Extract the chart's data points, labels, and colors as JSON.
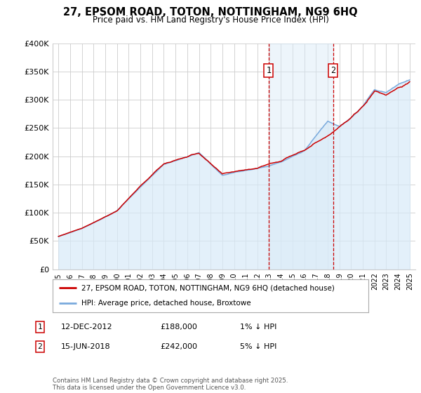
{
  "title": "27, EPSOM ROAD, TOTON, NOTTINGHAM, NG9 6HQ",
  "subtitle": "Price paid vs. HM Land Registry's House Price Index (HPI)",
  "ylim": [
    0,
    400000
  ],
  "yticks": [
    0,
    50000,
    100000,
    150000,
    200000,
    250000,
    300000,
    350000,
    400000
  ],
  "ytick_labels": [
    "£0",
    "£50K",
    "£100K",
    "£150K",
    "£200K",
    "£250K",
    "£300K",
    "£350K",
    "£400K"
  ],
  "xlim_start": 1994.5,
  "xlim_end": 2025.5,
  "xticks": [
    1995,
    1996,
    1997,
    1998,
    1999,
    2000,
    2001,
    2002,
    2003,
    2004,
    2005,
    2006,
    2007,
    2008,
    2009,
    2010,
    2011,
    2012,
    2013,
    2014,
    2015,
    2016,
    2017,
    2018,
    2019,
    2020,
    2021,
    2022,
    2023,
    2024,
    2025
  ],
  "event1_x": 2012.95,
  "event1_label": "1",
  "event1_date": "12-DEC-2012",
  "event1_price": "£188,000",
  "event1_hpi": "1% ↓ HPI",
  "event2_x": 2018.46,
  "event2_label": "2",
  "event2_date": "15-JUN-2018",
  "event2_price": "£242,000",
  "event2_hpi": "5% ↓ HPI",
  "red_line_color": "#cc0000",
  "blue_line_color": "#7aaadd",
  "blue_fill_color": "#d8eaf8",
  "vline_color": "#cc0000",
  "grid_color": "#cccccc",
  "bg_color": "#ffffff",
  "footnote": "Contains HM Land Registry data © Crown copyright and database right 2025.\nThis data is licensed under the Open Government Licence v3.0.",
  "legend_label1": "27, EPSOM ROAD, TOTON, NOTTINGHAM, NG9 6HQ (detached house)",
  "legend_label2": "HPI: Average price, detached house, Broxtowe",
  "hpi_keypoints_x": [
    1995,
    1997,
    2000,
    2002,
    2004,
    2007,
    2009,
    2010,
    2012,
    2013,
    2014,
    2016,
    2018,
    2019,
    2020,
    2021,
    2022,
    2023,
    2024,
    2025
  ],
  "hpi_keypoints_y": [
    58000,
    72000,
    103000,
    145000,
    185000,
    205000,
    165000,
    170000,
    178000,
    182000,
    190000,
    210000,
    262000,
    255000,
    270000,
    290000,
    320000,
    315000,
    330000,
    340000
  ],
  "prop_keypoints_x": [
    1995,
    1997,
    2000,
    2002,
    2004,
    2007,
    2009,
    2010,
    2012,
    2013,
    2014,
    2016,
    2018,
    2019,
    2020,
    2021,
    2022,
    2023,
    2024,
    2025
  ],
  "prop_keypoints_y": [
    58000,
    73000,
    105000,
    148000,
    188000,
    208000,
    168000,
    172000,
    180000,
    188000,
    193000,
    215000,
    242000,
    260000,
    275000,
    295000,
    325000,
    318000,
    333000,
    342000
  ]
}
